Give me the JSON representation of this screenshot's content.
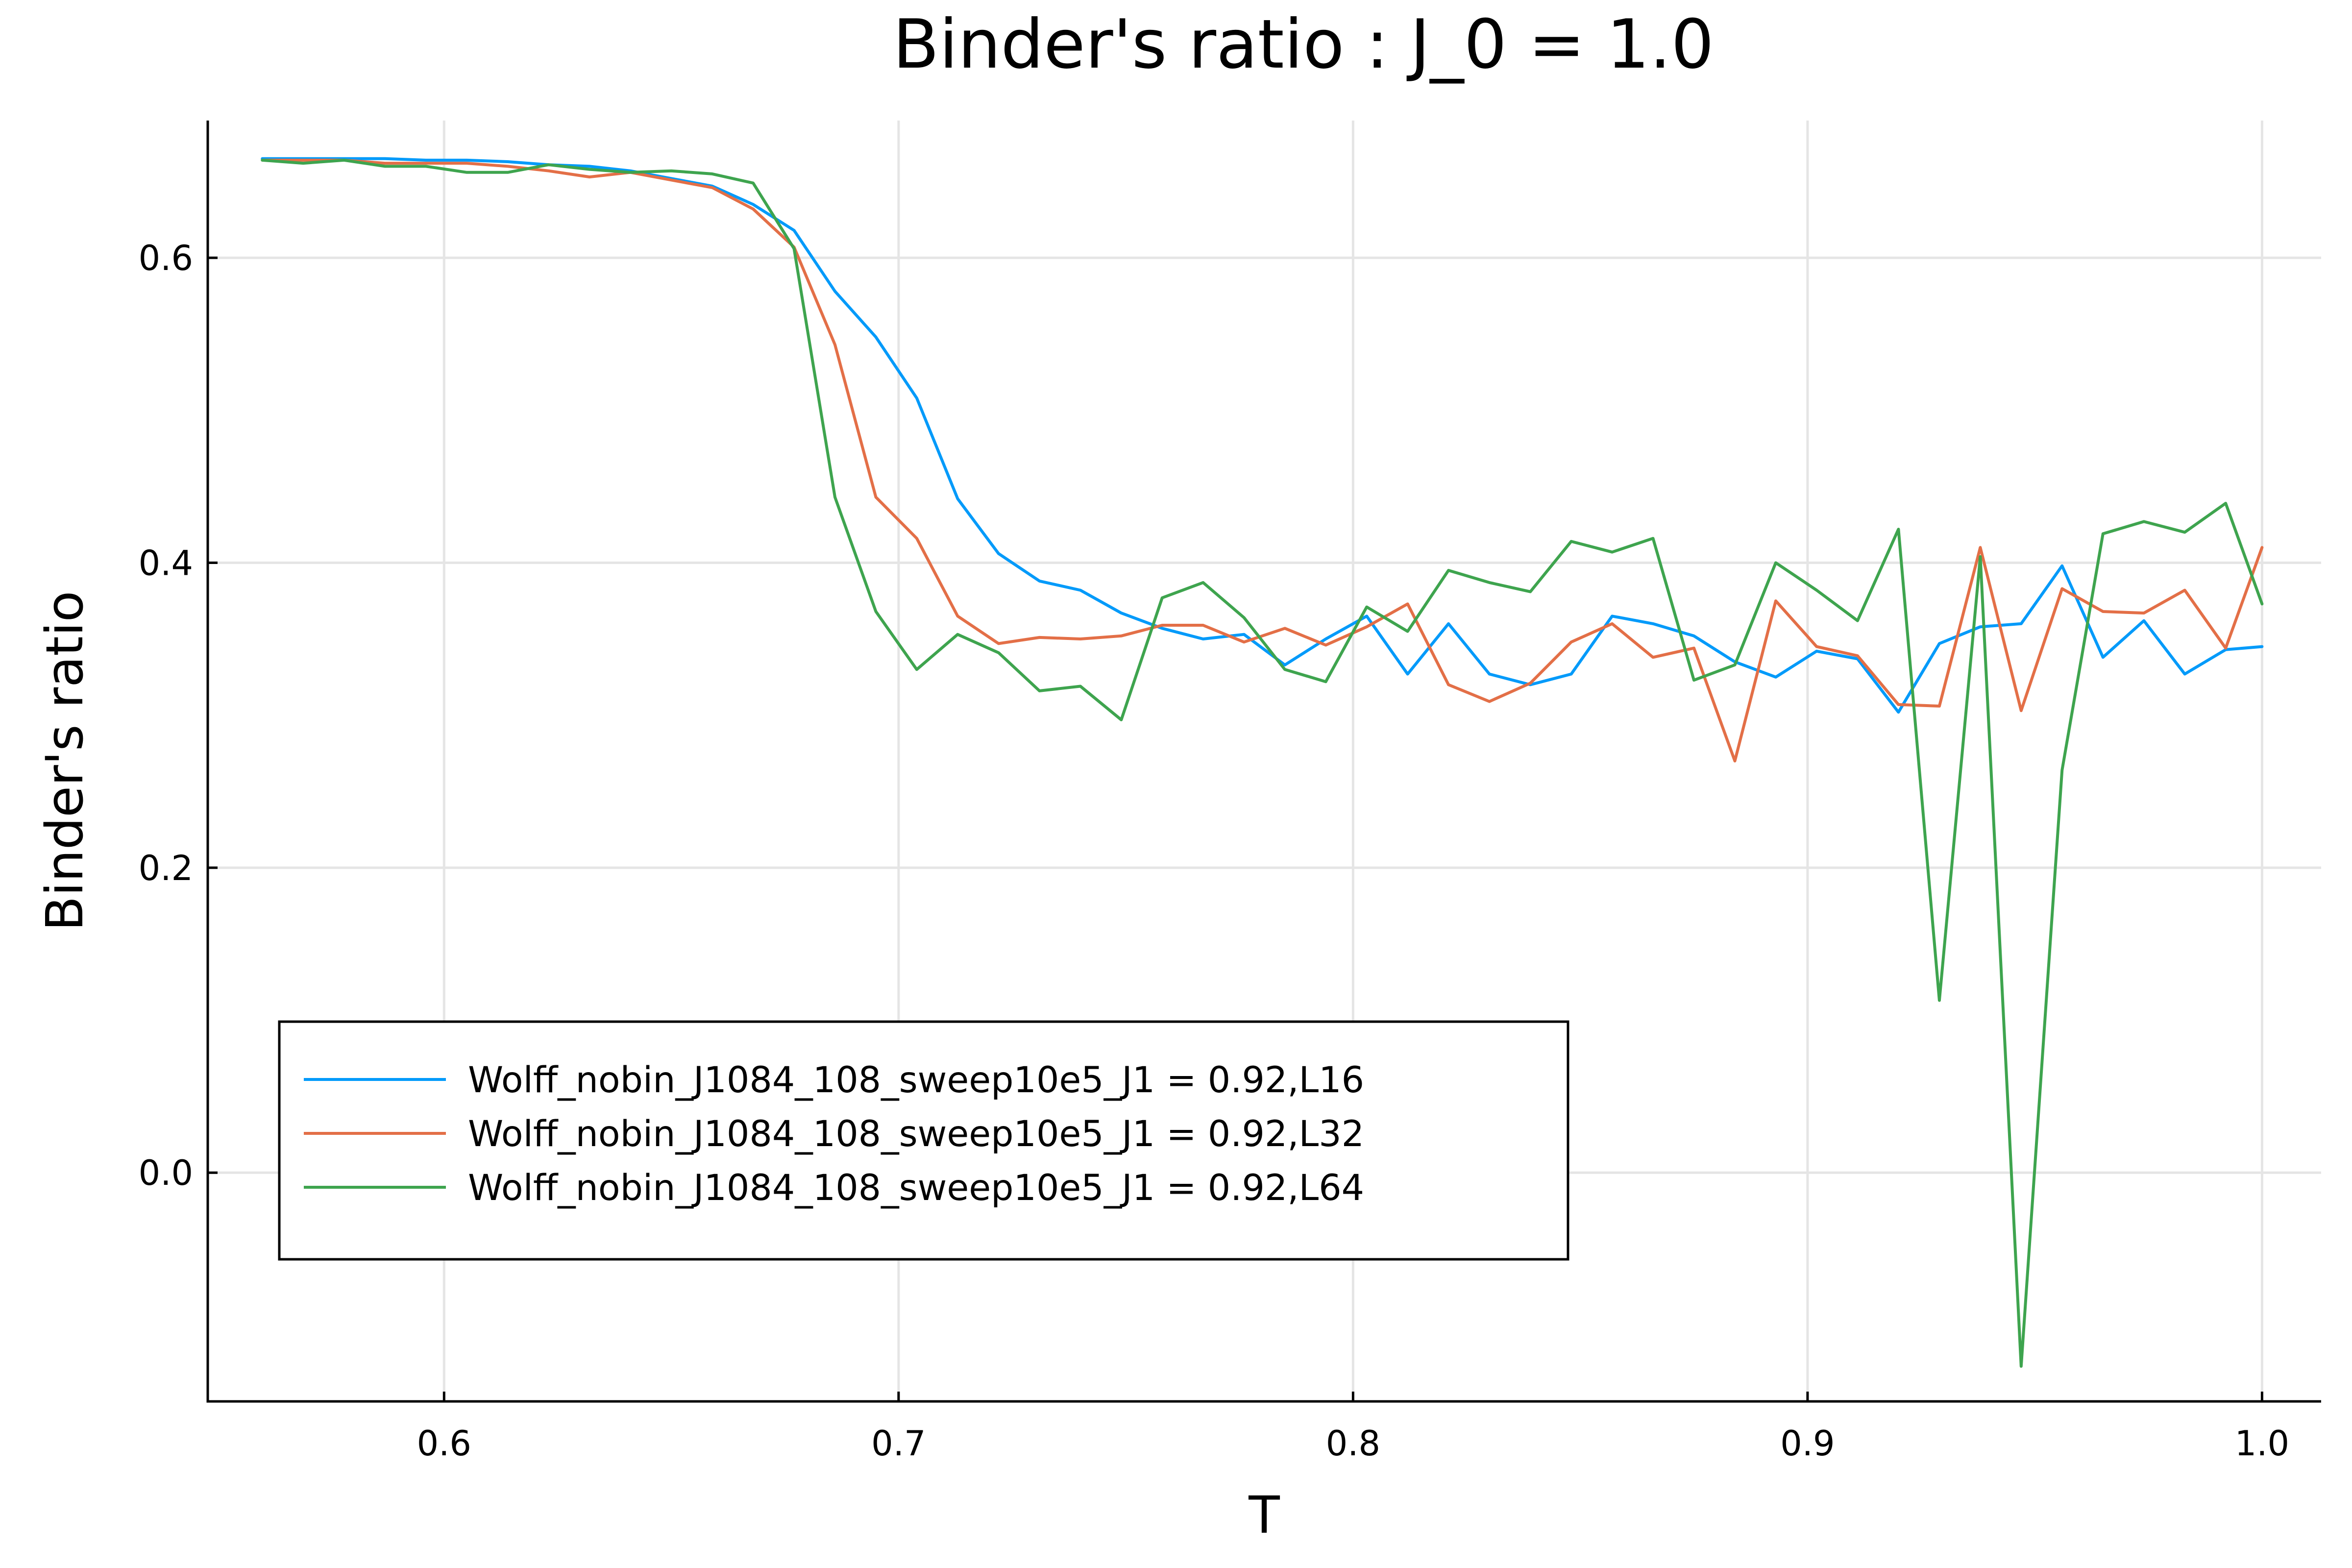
{
  "chart_data": {
    "type": "line",
    "title": "Binder's ratio : J_0 = 1.0",
    "xlabel": "T",
    "ylabel": "Binder's ratio",
    "xlim": [
      0.548,
      1.013
    ],
    "ylim": [
      -0.15,
      0.69
    ],
    "xticks": [
      0.6,
      0.7,
      0.8,
      0.9,
      1.0
    ],
    "xtick_labels": [
      "0.6",
      "0.7",
      "0.8",
      "0.9",
      "1.0"
    ],
    "yticks": [
      0.0,
      0.2,
      0.4,
      0.6
    ],
    "ytick_labels": [
      "0.0",
      "0.2",
      "0.4",
      "0.6"
    ],
    "grid": true,
    "legend_position": "bottom-left",
    "x": [
      0.56,
      0.569,
      0.578,
      0.587,
      0.596,
      0.605,
      0.614,
      0.623,
      0.632,
      0.641,
      0.65,
      0.659,
      0.668,
      0.677,
      0.686,
      0.695,
      0.704,
      0.713,
      0.722,
      0.731,
      0.74,
      0.749,
      0.758,
      0.767,
      0.776,
      0.785,
      0.794,
      0.803,
      0.812,
      0.821,
      0.83,
      0.839,
      0.848,
      0.857,
      0.866,
      0.875,
      0.884,
      0.893,
      0.902,
      0.911,
      0.92,
      0.929,
      0.938,
      0.947,
      0.956,
      0.965,
      0.974,
      0.983,
      0.992,
      1.0
    ],
    "series": [
      {
        "name": "Wolff_nobin_J1084_108_sweep10e5_J1 = 0.92,L16",
        "color": "#009AFA",
        "values": [
          0.665,
          0.665,
          0.665,
          0.665,
          0.664,
          0.664,
          0.663,
          0.661,
          0.66,
          0.657,
          0.652,
          0.647,
          0.635,
          0.618,
          0.578,
          0.548,
          0.508,
          0.442,
          0.406,
          0.388,
          0.382,
          0.367,
          0.357,
          0.35,
          0.353,
          0.333,
          0.35,
          0.365,
          0.327,
          0.36,
          0.327,
          0.32,
          0.327,
          0.365,
          0.36,
          0.352,
          0.335,
          0.325,
          0.342,
          0.337,
          0.302,
          0.347,
          0.358,
          0.36,
          0.398,
          0.338,
          0.362,
          0.327,
          0.343,
          0.345
        ]
      },
      {
        "name": "Wolff_nobin_J1084_108_sweep10e5_J1 = 0.92,L32",
        "color": "#E36F47",
        "values": [
          0.664,
          0.664,
          0.664,
          0.662,
          0.662,
          0.662,
          0.66,
          0.657,
          0.653,
          0.656,
          0.651,
          0.646,
          0.632,
          0.607,
          0.543,
          0.443,
          0.416,
          0.365,
          0.347,
          0.351,
          0.35,
          0.352,
          0.359,
          0.359,
          0.348,
          0.357,
          0.346,
          0.358,
          0.373,
          0.32,
          0.309,
          0.321,
          0.348,
          0.36,
          0.338,
          0.344,
          0.27,
          0.375,
          0.345,
          0.339,
          0.307,
          0.306,
          0.41,
          0.303,
          0.383,
          0.368,
          0.367,
          0.382,
          0.344,
          0.41
        ]
      },
      {
        "name": "Wolff_nobin_J1084_108_sweep10e5_J1 = 0.92,L64",
        "color": "#3EA44E",
        "values": [
          0.664,
          0.662,
          0.664,
          0.66,
          0.66,
          0.656,
          0.656,
          0.661,
          0.658,
          0.656,
          0.657,
          0.655,
          0.649,
          0.606,
          0.443,
          0.368,
          0.33,
          0.353,
          0.341,
          0.316,
          0.319,
          0.297,
          0.377,
          0.387,
          0.364,
          0.33,
          0.322,
          0.371,
          0.355,
          0.395,
          0.387,
          0.381,
          0.414,
          0.407,
          0.416,
          0.323,
          0.333,
          0.4,
          0.382,
          0.362,
          0.422,
          0.113,
          0.404,
          -0.127,
          0.264,
          0.419,
          0.427,
          0.42,
          0.439,
          0.373
        ]
      }
    ]
  }
}
